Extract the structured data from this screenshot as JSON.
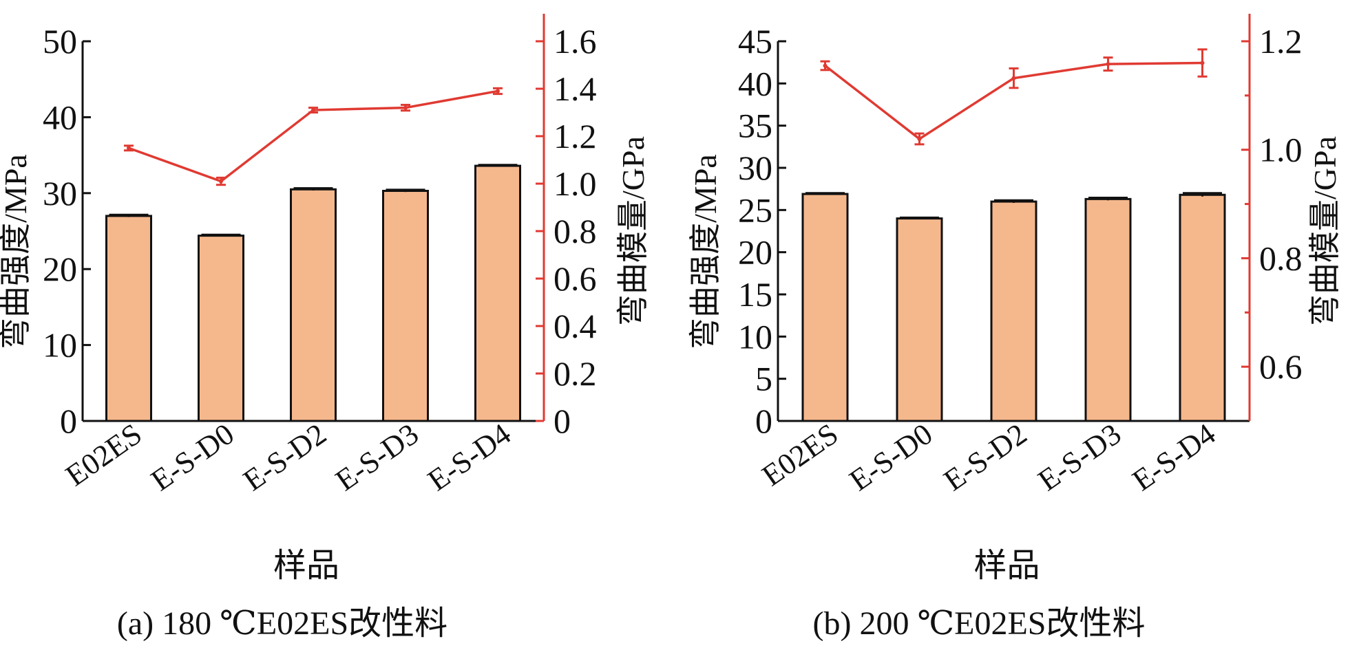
{
  "colors": {
    "bar": "#F5B88C",
    "bar_edge": "#111111",
    "line": "#E03A32",
    "axis": "#111111"
  },
  "chart_data": [
    {
      "type": "bar",
      "caption": "(a) 180 ℃E02ES改性料",
      "categories": [
        "E02ES",
        "E-S-D0",
        "E-S-D2",
        "E-S-D3",
        "E-S-D4"
      ],
      "xlabel": "样品",
      "ylabel": "弯曲强度/MPa",
      "ylabel_right": "弯曲模量/GPa",
      "ylim": [
        0,
        50
      ],
      "yticks": [
        0,
        10,
        20,
        30,
        40,
        50
      ],
      "ylim_right": [
        0,
        1.6
      ],
      "yticks_right": [
        "0",
        "0.2",
        "0.4",
        "0.6",
        "0.8",
        "1.0",
        "1.2",
        "1.4",
        "1.6"
      ],
      "series": [
        {
          "axis": "left",
          "kind": "bar",
          "values": [
            27.0,
            24.4,
            30.5,
            30.3,
            33.6
          ],
          "errors": [
            0.15,
            0.12,
            0.15,
            0.15,
            0.12
          ]
        },
        {
          "axis": "right",
          "kind": "line",
          "values": [
            1.15,
            1.01,
            1.31,
            1.32,
            1.39
          ],
          "errors": [
            0.01,
            0.015,
            0.01,
            0.012,
            0.012
          ]
        }
      ]
    },
    {
      "type": "bar",
      "caption": "(b) 200 ℃E02ES改性料",
      "categories": [
        "E02ES",
        "E-S-D0",
        "E-S-D2",
        "E-S-D3",
        "E-S-D4"
      ],
      "xlabel": "样品",
      "ylabel": "弯曲强度/MPa",
      "ylabel_right": "弯曲模量/GPa",
      "ylim": [
        0,
        45
      ],
      "yticks": [
        0,
        5,
        10,
        15,
        20,
        25,
        30,
        35,
        40,
        45
      ],
      "ylim_right": [
        0.5,
        1.2
      ],
      "yticks_right": [
        "0.6",
        "0.8",
        "1.0",
        "1.2"
      ],
      "series": [
        {
          "axis": "left",
          "kind": "bar",
          "values": [
            26.9,
            24.0,
            26.0,
            26.3,
            26.8
          ],
          "errors": [
            0.1,
            0.1,
            0.15,
            0.15,
            0.2
          ]
        },
        {
          "axis": "right",
          "kind": "line",
          "values": [
            1.155,
            1.02,
            1.132,
            1.158,
            1.16
          ],
          "errors": [
            0.008,
            0.01,
            0.018,
            0.012,
            0.025
          ]
        }
      ]
    }
  ]
}
